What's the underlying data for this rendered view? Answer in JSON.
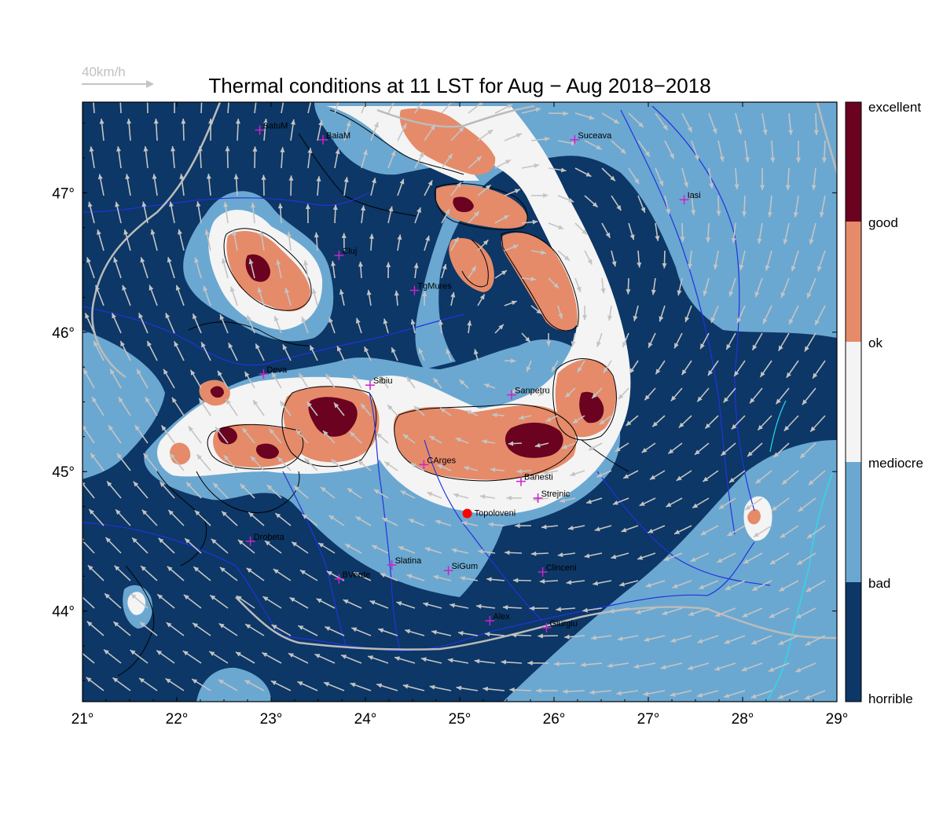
{
  "title": "Thermal conditions at 11 LST for Aug − Aug  2018−2018",
  "wind_scale": {
    "label": "40km/h"
  },
  "map": {
    "lon_range": [
      21,
      29
    ],
    "lat_range": [
      43.35,
      47.65
    ],
    "x_ticks": [
      {
        "value": 21,
        "label": "21°"
      },
      {
        "value": 22,
        "label": "22°"
      },
      {
        "value": 23,
        "label": "23°"
      },
      {
        "value": 24,
        "label": "24°"
      },
      {
        "value": 25,
        "label": "25°"
      },
      {
        "value": 26,
        "label": "26°"
      },
      {
        "value": 27,
        "label": "27°"
      },
      {
        "value": 28,
        "label": "28°"
      },
      {
        "value": 29,
        "label": "29°"
      }
    ],
    "y_ticks": [
      {
        "value": 44,
        "label": "44°"
      },
      {
        "value": 45,
        "label": "45°"
      },
      {
        "value": 46,
        "label": "46°"
      },
      {
        "value": 47,
        "label": "47°"
      }
    ],
    "colors": {
      "horrible": "#0c3766",
      "bad": "#6ba8d1",
      "mediocre": "#f4f4f4",
      "ok": "#e58b6a",
      "good": "#6a0220",
      "border": "#bbbbbb",
      "river": "#2233dd",
      "coast": "#22e3ee",
      "arrow": "#c4c4c4",
      "city": "#cc22cc",
      "marker": "#ff0000"
    }
  },
  "colorbar": {
    "labels": [
      "excellent",
      "good",
      "ok",
      "mediocre",
      "bad",
      "horrible"
    ]
  },
  "cities": [
    {
      "name": "SatuM",
      "lon": 22.88,
      "lat": 47.45
    },
    {
      "name": "BaiaM",
      "lon": 23.55,
      "lat": 47.38
    },
    {
      "name": "Suceava",
      "lon": 26.22,
      "lat": 47.38
    },
    {
      "name": "Iasi",
      "lon": 27.38,
      "lat": 46.95
    },
    {
      "name": "Cluj",
      "lon": 23.72,
      "lat": 46.55
    },
    {
      "name": "TgMures",
      "lon": 24.52,
      "lat": 46.3
    },
    {
      "name": "Deva",
      "lon": 22.92,
      "lat": 45.7
    },
    {
      "name": "Sibiu",
      "lon": 24.05,
      "lat": 45.62
    },
    {
      "name": "Sanpetru",
      "lon": 25.55,
      "lat": 45.55
    },
    {
      "name": "CArges",
      "lon": 24.62,
      "lat": 45.05
    },
    {
      "name": "Banesti",
      "lon": 25.65,
      "lat": 44.93
    },
    {
      "name": "Strejnic",
      "lon": 25.83,
      "lat": 44.81
    },
    {
      "name": "Drobeta",
      "lon": 22.78,
      "lat": 44.5
    },
    {
      "name": "Slatina",
      "lon": 24.28,
      "lat": 44.33
    },
    {
      "name": "SiGum",
      "lon": 24.88,
      "lat": 44.29
    },
    {
      "name": "Clinceni",
      "lon": 25.88,
      "lat": 44.28
    },
    {
      "name": "BVerde",
      "lon": 23.72,
      "lat": 44.23
    },
    {
      "name": "Alex",
      "lon": 25.32,
      "lat": 43.93
    },
    {
      "name": "Giurgiu",
      "lon": 25.92,
      "lat": 43.88
    }
  ],
  "marker": {
    "name": "Topoloveni",
    "lon": 25.08,
    "lat": 44.7
  }
}
